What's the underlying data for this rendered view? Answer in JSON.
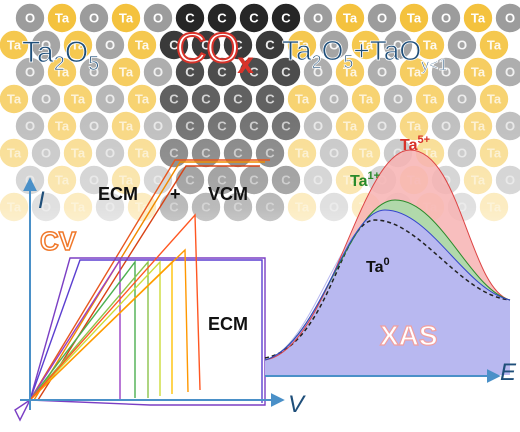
{
  "atoms": {
    "rows": [
      [
        "O",
        "Ta",
        "O",
        "Ta",
        "O",
        "C",
        "C",
        "C",
        "C",
        "O",
        "Ta",
        "O",
        "Ta",
        "O",
        "Ta",
        "O"
      ],
      [
        "Ta",
        "O",
        "Ta",
        "O",
        "Ta",
        "C",
        "C",
        "C",
        "C",
        "Ta",
        "O",
        "Ta",
        "O",
        "Ta",
        "O",
        "Ta"
      ],
      [
        "O",
        "Ta",
        "O",
        "Ta",
        "O",
        "C",
        "C",
        "C",
        "C",
        "O",
        "Ta",
        "O",
        "Ta",
        "O",
        "Ta",
        "O"
      ],
      [
        "Ta",
        "O",
        "Ta",
        "O",
        "Ta",
        "C",
        "C",
        "C",
        "C",
        "Ta",
        "O",
        "Ta",
        "O",
        "Ta",
        "O",
        "Ta"
      ],
      [
        "O",
        "Ta",
        "O",
        "Ta",
        "O",
        "C",
        "C",
        "C",
        "C",
        "O",
        "Ta",
        "O",
        "Ta",
        "O",
        "Ta",
        "O"
      ],
      [
        "Ta",
        "O",
        "Ta",
        "O",
        "Ta",
        "C",
        "C",
        "C",
        "C",
        "Ta",
        "O",
        "Ta",
        "O",
        "Ta",
        "O",
        "Ta"
      ],
      [
        "O",
        "Ta",
        "O",
        "Ta",
        "O",
        "C",
        "C",
        "C",
        "C",
        "O",
        "Ta",
        "O",
        "Ta",
        "O",
        "Ta",
        "O"
      ],
      [
        "Ta",
        "O",
        "Ta",
        "O",
        "Ta",
        "C",
        "C",
        "C",
        "C",
        "Ta",
        "O",
        "Ta",
        "O",
        "Ta",
        "O",
        "Ta"
      ]
    ]
  },
  "labels": {
    "left_formula": [
      "Ta",
      "2",
      "O",
      "5"
    ],
    "middle_formula": [
      "CO",
      "x"
    ],
    "right_formula": [
      "Ta",
      "2",
      "O",
      "5",
      "+TaO",
      "y<1"
    ],
    "current_axis": "I",
    "voltage_axis": "V",
    "energy_axis": "E",
    "ecm_top": "ECM",
    "plus": "+",
    "vcm": "VCM",
    "cv": "CV",
    "ecm_bottom": "ECM",
    "ta5": [
      "Ta",
      "5+"
    ],
    "ta1": [
      "Ta",
      "1+"
    ],
    "ta0": [
      "Ta",
      "0"
    ],
    "xas": "XAS"
  }
}
